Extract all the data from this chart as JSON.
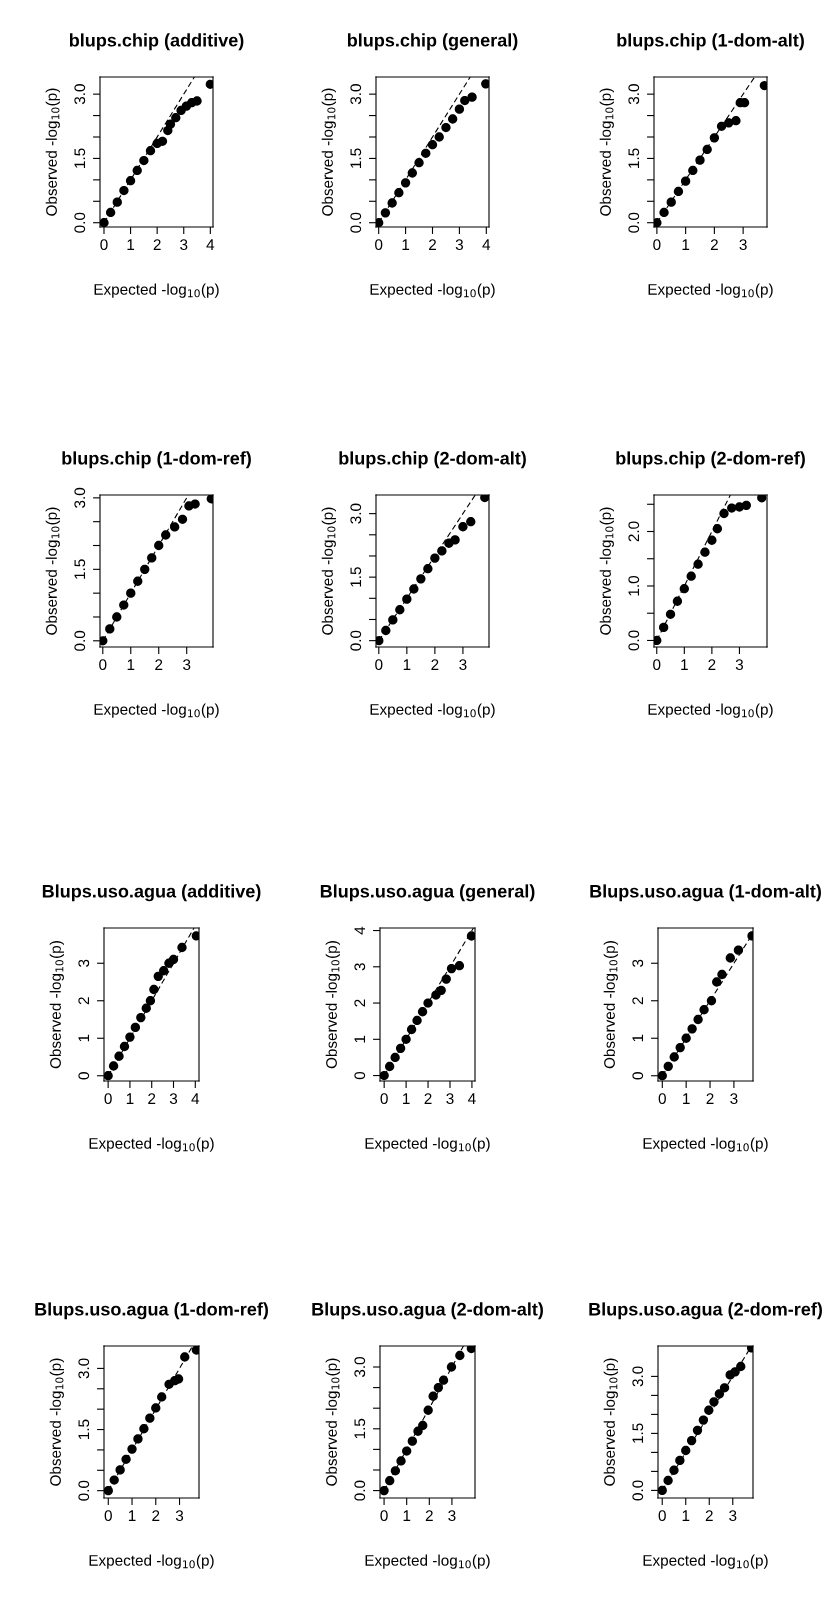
{
  "chart_data": [
    {
      "type": "scatter",
      "title": "blups.chip (additive)",
      "xlabel": "Expected -log$_{10}$(p)",
      "ylabel": "Observed -log$_{10}$(p)",
      "xlim": [
        -0.15,
        4.1
      ],
      "ylim": [
        -0.1,
        3.4
      ],
      "xticks": [
        0,
        1,
        2,
        3,
        4
      ],
      "yticks": [
        {
          "value": 0,
          "label": "0.0"
        },
        {
          "value": 0.5,
          "label": null
        },
        {
          "value": 1,
          "label": null
        },
        {
          "value": 1.5,
          "label": "1.5"
        },
        {
          "value": 2,
          "label": null
        },
        {
          "value": 2.5,
          "label": null
        },
        {
          "value": 3,
          "label": "3.0"
        }
      ],
      "series": [
        {
          "marker": "circle",
          "color": "#000000",
          "x": [
            0,
            0.25,
            0.5,
            0.75,
            1,
            1.25,
            1.5,
            1.75,
            2.0,
            2.2,
            2.4,
            2.5,
            2.7,
            2.9,
            3.1,
            3.3,
            3.5,
            4.0
          ],
          "values": [
            0,
            0.24,
            0.48,
            0.75,
            0.98,
            1.22,
            1.45,
            1.68,
            1.85,
            1.9,
            2.15,
            2.3,
            2.45,
            2.62,
            2.72,
            2.8,
            2.84,
            3.23
          ]
        },
        {
          "type": "line",
          "marker": "none",
          "color": "#000000",
          "line_style": "dashed",
          "x": [
            0,
            3.4
          ],
          "values": [
            0,
            3.4
          ]
        }
      ]
    },
    {
      "type": "scatter",
      "title": "blups.chip (general)",
      "xlabel": "Expected -log$_{10}$(p)",
      "ylabel": "Observed -log$_{10}$(p)",
      "xlim": [
        -0.1,
        4.1
      ],
      "ylim": [
        -0.1,
        3.4
      ],
      "xticks": [
        0,
        1,
        2,
        3,
        4
      ],
      "yticks": [
        {
          "value": 0,
          "label": "0.0"
        },
        {
          "value": 0.5,
          "label": null
        },
        {
          "value": 1,
          "label": null
        },
        {
          "value": 1.5,
          "label": "1.5"
        },
        {
          "value": 2,
          "label": null
        },
        {
          "value": 2.5,
          "label": null
        },
        {
          "value": 3,
          "label": "3.0"
        }
      ],
      "series": [
        {
          "marker": "circle",
          "color": "#000000",
          "x": [
            0,
            0.25,
            0.5,
            0.75,
            1,
            1.25,
            1.5,
            1.75,
            2.0,
            2.25,
            2.5,
            2.75,
            3.0,
            3.2,
            3.47,
            3.98
          ],
          "values": [
            0,
            0.23,
            0.46,
            0.7,
            0.93,
            1.16,
            1.4,
            1.62,
            1.82,
            2.0,
            2.22,
            2.42,
            2.65,
            2.85,
            2.93,
            3.24
          ]
        },
        {
          "type": "line",
          "marker": "none",
          "color": "#000000",
          "line_style": "dashed",
          "x": [
            0,
            3.4
          ],
          "values": [
            0,
            3.4
          ]
        }
      ]
    },
    {
      "type": "scatter",
      "title": "blups.chip (1-dom-alt)",
      "xlabel": "Expected -log$_{10}$(p)",
      "ylabel": "Observed -log$_{10}$(p)",
      "xlim": [
        -0.1,
        3.83
      ],
      "ylim": [
        -0.1,
        3.4
      ],
      "xticks": [
        0,
        1,
        2,
        3
      ],
      "yticks": [
        {
          "value": 0,
          "label": "0.0"
        },
        {
          "value": 0.5,
          "label": null
        },
        {
          "value": 1,
          "label": null
        },
        {
          "value": 1.5,
          "label": "1.5"
        },
        {
          "value": 2,
          "label": null
        },
        {
          "value": 2.5,
          "label": null
        },
        {
          "value": 3,
          "label": "3.0"
        }
      ],
      "series": [
        {
          "marker": "circle",
          "color": "#000000",
          "x": [
            0,
            0.25,
            0.5,
            0.75,
            1,
            1.25,
            1.5,
            1.75,
            2.0,
            2.25,
            2.5,
            2.75,
            2.9,
            3.05,
            3.74
          ],
          "values": [
            0,
            0.24,
            0.48,
            0.73,
            0.97,
            1.22,
            1.46,
            1.71,
            1.98,
            2.25,
            2.33,
            2.38,
            2.8,
            2.8,
            3.2
          ]
        },
        {
          "type": "line",
          "marker": "none",
          "color": "#000000",
          "line_style": "dashed",
          "x": [
            0,
            3.4
          ],
          "values": [
            0,
            3.4
          ]
        }
      ]
    },
    {
      "type": "scatter",
      "title": "blups.chip (1-dom-ref)",
      "xlabel": "Expected -log$_{10}$(p)",
      "ylabel": "Observed -log$_{10}$(p)",
      "xlim": [
        -0.1,
        3.94
      ],
      "ylim": [
        -0.13,
        3.06
      ],
      "xticks": [
        0,
        1,
        2,
        3
      ],
      "yticks": [
        {
          "value": 0,
          "label": "0.0"
        },
        {
          "value": 0.5,
          "label": null
        },
        {
          "value": 1,
          "label": null
        },
        {
          "value": 1.5,
          "label": "1.5"
        },
        {
          "value": 2,
          "label": null
        },
        {
          "value": 2.5,
          "label": null
        },
        {
          "value": 3,
          "label": "3.0"
        }
      ],
      "series": [
        {
          "marker": "circle",
          "color": "#000000",
          "x": [
            0,
            0.25,
            0.5,
            0.75,
            1,
            1.25,
            1.5,
            1.75,
            2.0,
            2.25,
            2.57,
            2.85,
            3.08,
            3.3,
            3.88
          ],
          "values": [
            0,
            0.25,
            0.5,
            0.75,
            1.0,
            1.25,
            1.5,
            1.74,
            2.0,
            2.22,
            2.39,
            2.55,
            2.83,
            2.87,
            2.98
          ]
        },
        {
          "type": "line",
          "marker": "none",
          "color": "#000000",
          "line_style": "dashed",
          "x": [
            0,
            3.06
          ],
          "values": [
            0,
            3.06
          ]
        }
      ]
    },
    {
      "type": "scatter",
      "title": "blups.chip (2-dom-alt)",
      "xlabel": "Expected -log$_{10}$(p)",
      "ylabel": "Observed -log$_{10}$(p)",
      "xlim": [
        -0.1,
        3.93
      ],
      "ylim": [
        -0.15,
        3.44
      ],
      "xticks": [
        0,
        1,
        2,
        3
      ],
      "yticks": [
        {
          "value": 0,
          "label": "0.0"
        },
        {
          "value": 0.5,
          "label": null
        },
        {
          "value": 1,
          "label": null
        },
        {
          "value": 1.5,
          "label": "1.5"
        },
        {
          "value": 2,
          "label": null
        },
        {
          "value": 2.5,
          "label": null
        },
        {
          "value": 3,
          "label": "3.0"
        }
      ],
      "series": [
        {
          "marker": "circle",
          "color": "#000000",
          "x": [
            0,
            0.25,
            0.5,
            0.75,
            1,
            1.25,
            1.5,
            1.75,
            2.0,
            2.25,
            2.5,
            2.72,
            3.0,
            3.28,
            3.78
          ],
          "values": [
            0,
            0.24,
            0.49,
            0.73,
            0.98,
            1.22,
            1.46,
            1.7,
            1.95,
            2.12,
            2.3,
            2.38,
            2.69,
            2.81,
            3.38
          ]
        },
        {
          "type": "line",
          "marker": "none",
          "color": "#000000",
          "line_style": "dashed",
          "x": [
            0,
            3.44
          ],
          "values": [
            0,
            3.44
          ]
        }
      ]
    },
    {
      "type": "scatter",
      "title": "blups.chip (2-dom-ref)",
      "xlabel": "Expected -log$_{10}$(p)",
      "ylabel": "Observed -log$_{10}$(p)",
      "xlim": [
        -0.1,
        4.0
      ],
      "ylim": [
        -0.12,
        2.67
      ],
      "xticks": [
        0,
        1,
        2,
        3
      ],
      "yticks": [
        {
          "value": 0,
          "label": "0.0"
        },
        {
          "value": 0.5,
          "label": null
        },
        {
          "value": 1,
          "label": "1.0"
        },
        {
          "value": 1.5,
          "label": null
        },
        {
          "value": 2,
          "label": "2.0"
        },
        {
          "value": 2.5,
          "label": null
        }
      ],
      "series": [
        {
          "marker": "circle",
          "color": "#000000",
          "x": [
            0,
            0.25,
            0.5,
            0.75,
            1,
            1.25,
            1.5,
            1.75,
            2.0,
            2.2,
            2.44,
            2.72,
            3.0,
            3.25,
            3.81
          ],
          "values": [
            0,
            0.24,
            0.48,
            0.72,
            0.95,
            1.18,
            1.4,
            1.62,
            1.84,
            2.05,
            2.33,
            2.43,
            2.45,
            2.48,
            2.62
          ]
        },
        {
          "type": "line",
          "marker": "none",
          "color": "#000000",
          "line_style": "dashed",
          "x": [
            0,
            2.67
          ],
          "values": [
            0,
            2.67
          ]
        }
      ]
    },
    {
      "type": "scatter",
      "title": "Blups.uso.agua (additive)",
      "xlabel": "Expected -log$_{10}$(p)",
      "ylabel": "Observed -log$_{10}$(p)",
      "xlim": [
        -0.19,
        4.17
      ],
      "ylim": [
        -0.14,
        3.94
      ],
      "xticks": [
        0,
        1,
        2,
        3,
        4
      ],
      "yticks": [
        0,
        1,
        2,
        3
      ],
      "series": [
        {
          "marker": "circle",
          "color": "#000000",
          "x": [
            0,
            0.25,
            0.5,
            0.75,
            1,
            1.25,
            1.5,
            1.75,
            1.94,
            2.1,
            2.3,
            2.55,
            2.79,
            3.0,
            3.39,
            4.05
          ],
          "values": [
            0,
            0.26,
            0.52,
            0.78,
            1.03,
            1.29,
            1.55,
            1.8,
            2.0,
            2.3,
            2.65,
            2.8,
            3.0,
            3.1,
            3.42,
            3.73
          ]
        },
        {
          "type": "line",
          "marker": "none",
          "color": "#000000",
          "line_style": "dashed",
          "x": [
            0,
            3.94
          ],
          "values": [
            0,
            3.94
          ]
        }
      ]
    },
    {
      "type": "scatter",
      "title": "Blups.uso.agua (general)",
      "xlabel": "Expected -log$_{10}$(p)",
      "ylabel": "Observed -log$_{10}$(p)",
      "xlim": [
        -0.19,
        4.14
      ],
      "ylim": [
        -0.15,
        4.07
      ],
      "xticks": [
        0,
        1,
        2,
        3,
        4
      ],
      "yticks": [
        0,
        1,
        2,
        3,
        4
      ],
      "series": [
        {
          "marker": "circle",
          "color": "#000000",
          "x": [
            0,
            0.25,
            0.5,
            0.75,
            1,
            1.25,
            1.5,
            1.75,
            2.0,
            2.36,
            2.6,
            2.83,
            3.07,
            3.43,
            3.98
          ],
          "values": [
            0,
            0.25,
            0.5,
            0.75,
            1.0,
            1.27,
            1.52,
            1.76,
            2.0,
            2.22,
            2.35,
            2.66,
            2.95,
            3.03,
            3.85
          ]
        },
        {
          "type": "line",
          "marker": "none",
          "color": "#000000",
          "line_style": "dashed",
          "x": [
            0,
            4.07
          ],
          "values": [
            0,
            4.07
          ]
        }
      ]
    },
    {
      "type": "scatter",
      "title": "Blups.uso.agua (1-dom-alt)",
      "xlabel": "Expected -log$_{10}$(p)",
      "ylabel": "Observed -log$_{10}$(p)",
      "xlim": [
        -0.18,
        3.8
      ],
      "ylim": [
        -0.14,
        3.94
      ],
      "xticks": [
        0,
        1,
        2,
        3
      ],
      "yticks": [
        0,
        1,
        2,
        3
      ],
      "series": [
        {
          "marker": "circle",
          "color": "#000000",
          "x": [
            0,
            0.25,
            0.5,
            0.75,
            1,
            1.25,
            1.5,
            1.75,
            2.06,
            2.28,
            2.5,
            2.85,
            3.19,
            3.76
          ],
          "values": [
            0,
            0.25,
            0.5,
            0.75,
            1.0,
            1.25,
            1.5,
            1.76,
            2.0,
            2.5,
            2.7,
            3.14,
            3.35,
            3.73
          ]
        },
        {
          "type": "line",
          "marker": "none",
          "color": "#000000",
          "line_style": "dashed",
          "x": [
            0,
            3.8
          ],
          "values": [
            0,
            3.8
          ]
        }
      ]
    },
    {
      "type": "scatter",
      "title": "Blups.uso.agua (1-dom-ref)",
      "xlabel": "Expected -log$_{10}$(p)",
      "ylabel": "Observed -log$_{10}$(p)",
      "xlim": [
        -0.18,
        3.82
      ],
      "ylim": [
        -0.18,
        3.55
      ],
      "xticks": [
        0,
        1,
        2,
        3
      ],
      "yticks": [
        {
          "value": 0,
          "label": "0.0"
        },
        {
          "value": 0.5,
          "label": null
        },
        {
          "value": 1,
          "label": null
        },
        {
          "value": 1.5,
          "label": "1.5"
        },
        {
          "value": 2,
          "label": null
        },
        {
          "value": 2.5,
          "label": null
        },
        {
          "value": 3,
          "label": "3.0"
        }
      ],
      "series": [
        {
          "marker": "circle",
          "color": "#000000",
          "x": [
            0,
            0.25,
            0.5,
            0.75,
            1,
            1.25,
            1.5,
            1.75,
            2.0,
            2.25,
            2.56,
            2.8,
            2.96,
            3.22,
            3.71
          ],
          "values": [
            0,
            0.26,
            0.51,
            0.77,
            1.02,
            1.27,
            1.52,
            1.78,
            2.03,
            2.3,
            2.61,
            2.7,
            2.74,
            3.28,
            3.45
          ]
        },
        {
          "type": "line",
          "marker": "none",
          "color": "#000000",
          "line_style": "dashed",
          "x": [
            0,
            3.55
          ],
          "values": [
            0,
            3.55
          ]
        }
      ]
    },
    {
      "type": "scatter",
      "title": "Blups.uso.agua (2-dom-alt)",
      "xlabel": "Expected -log$_{10}$(p)",
      "ylabel": "Observed -log$_{10}$(p)",
      "xlim": [
        -0.18,
        4.02
      ],
      "ylim": [
        -0.18,
        3.51
      ],
      "xticks": [
        0,
        1,
        2,
        3
      ],
      "yticks": [
        {
          "value": 0,
          "label": "0.0"
        },
        {
          "value": 0.5,
          "label": null
        },
        {
          "value": 1,
          "label": null
        },
        {
          "value": 1.5,
          "label": "1.5"
        },
        {
          "value": 2,
          "label": null
        },
        {
          "value": 2.5,
          "label": null
        },
        {
          "value": 3,
          "label": "3.0"
        }
      ],
      "series": [
        {
          "marker": "circle",
          "color": "#000000",
          "x": [
            0,
            0.25,
            0.5,
            0.75,
            1,
            1.25,
            1.5,
            1.71,
            1.95,
            2.17,
            2.4,
            2.63,
            2.98,
            3.35,
            3.86
          ],
          "values": [
            0,
            0.24,
            0.48,
            0.72,
            0.96,
            1.2,
            1.44,
            1.58,
            1.95,
            2.29,
            2.5,
            2.68,
            3.0,
            3.28,
            3.45
          ]
        },
        {
          "type": "line",
          "marker": "none",
          "color": "#000000",
          "line_style": "dashed",
          "x": [
            0,
            3.51
          ],
          "values": [
            0,
            3.51
          ]
        }
      ]
    },
    {
      "type": "scatter",
      "title": "Blups.uso.agua (2-dom-ref)",
      "xlabel": "Expected -log$_{10}$(p)",
      "ylabel": "Observed -log$_{10}$(p)",
      "xlim": [
        -0.18,
        3.86
      ],
      "ylim": [
        -0.2,
        3.8
      ],
      "xticks": [
        0,
        1,
        2,
        3
      ],
      "yticks": [
        {
          "value": 0,
          "label": "0.0"
        },
        {
          "value": 0.5,
          "label": null
        },
        {
          "value": 1,
          "label": null
        },
        {
          "value": 1.5,
          "label": "1.5"
        },
        {
          "value": 2,
          "label": null
        },
        {
          "value": 2.5,
          "label": null
        },
        {
          "value": 3,
          "label": "3.0"
        }
      ],
      "series": [
        {
          "marker": "circle",
          "color": "#000000",
          "x": [
            0,
            0.25,
            0.5,
            0.75,
            1,
            1.25,
            1.5,
            1.75,
            1.98,
            2.2,
            2.43,
            2.65,
            2.89,
            3.1,
            3.34,
            3.8
          ],
          "values": [
            0,
            0.26,
            0.53,
            0.79,
            1.05,
            1.31,
            1.58,
            1.85,
            2.11,
            2.33,
            2.54,
            2.7,
            3.04,
            3.12,
            3.26,
            3.75
          ]
        },
        {
          "type": "line",
          "marker": "none",
          "color": "#000000",
          "line_style": "dashed",
          "x": [
            0,
            3.8
          ],
          "values": [
            0,
            3.8
          ]
        }
      ]
    }
  ]
}
